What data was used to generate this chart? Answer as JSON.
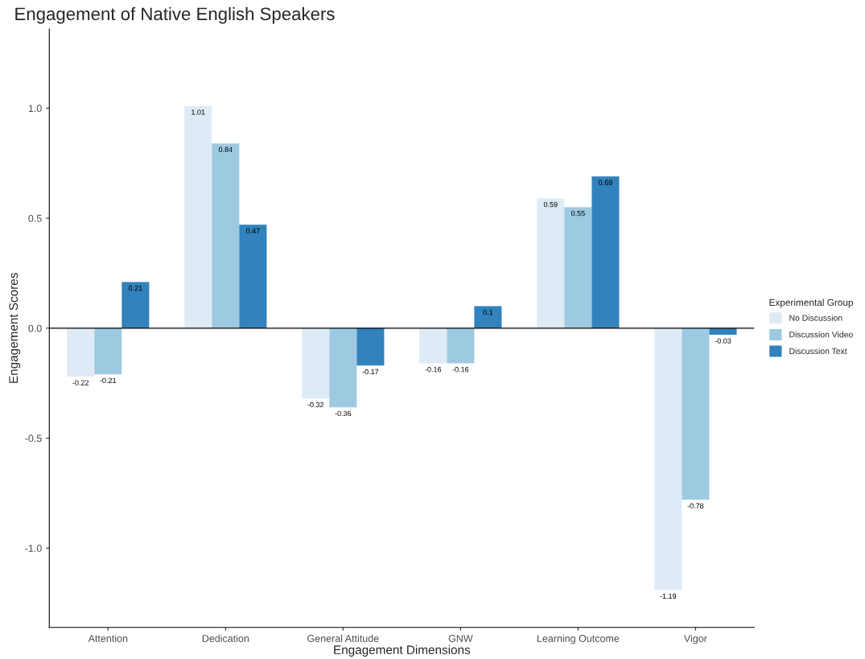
{
  "chart_data": {
    "type": "bar",
    "title": "Engagement of Native English Speakers",
    "xlabel": "Engagement Dimensions",
    "ylabel": "Engagement Scores",
    "legend_title": "Experimental Group",
    "categories": [
      "Attention",
      "Dedication",
      "General Attitude",
      "GNW",
      "Learning Outcome",
      "Vigor"
    ],
    "series": [
      {
        "name": "No Discussion",
        "color": "#deebf7",
        "values": [
          -0.22,
          1.01,
          -0.32,
          -0.16,
          0.59,
          -1.19
        ]
      },
      {
        "name": "Discussion Video",
        "color": "#9ecae1",
        "values": [
          -0.21,
          0.84,
          -0.36,
          -0.16,
          0.55,
          -0.78
        ]
      },
      {
        "name": "Discussion Text",
        "color": "#3182bd",
        "values": [
          0.21,
          0.47,
          -0.17,
          0.1,
          0.69,
          -0.03
        ]
      }
    ],
    "ylim": [
      -1.36,
      1.36
    ],
    "yticks": [
      {
        "value": -1.0,
        "label": "-1.0"
      },
      {
        "value": -0.5,
        "label": "-0.5"
      },
      {
        "value": 0.0,
        "label": "0.0"
      },
      {
        "value": 0.5,
        "label": "0.5"
      },
      {
        "value": 1.0,
        "label": "1.0"
      }
    ],
    "ref_lines": [
      {
        "axis": "y",
        "value": 0,
        "color": "#000000",
        "line_style": "solid"
      }
    ],
    "data_labels": true,
    "grid": false,
    "legend": "right"
  }
}
